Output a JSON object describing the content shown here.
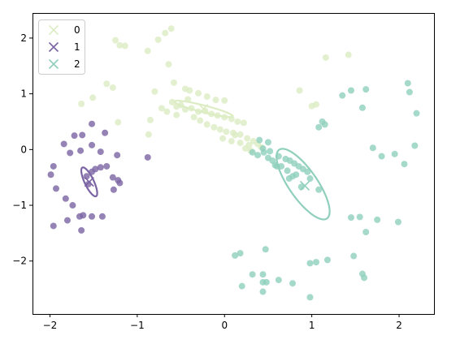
{
  "chart_data": {
    "type": "scatter",
    "xlim": [
      -2.2,
      2.4
    ],
    "ylim": [
      -2.95,
      2.45
    ],
    "x_ticks": [
      -2,
      -1,
      0,
      1,
      2
    ],
    "y_ticks": [
      -2,
      -1,
      0,
      1,
      2
    ],
    "x_tick_labels": [
      "−2",
      "−1",
      "0",
      "1",
      "2"
    ],
    "y_tick_labels": [
      "−2",
      "−1",
      "0",
      "1",
      "2"
    ],
    "grid": false,
    "legend_position": "top-left",
    "series": [
      {
        "name": "0",
        "color": "#dcecc3",
        "center": [
          -0.24,
          0.73
        ],
        "ellipse": {
          "center": [
            -0.24,
            0.73
          ],
          "rx": 0.36,
          "ry": 0.06,
          "angle_deg": -22
        },
        "points": [
          [
            -1.25,
            1.96
          ],
          [
            -1.14,
            1.86
          ],
          [
            -1.2,
            1.87
          ],
          [
            -0.88,
            1.77
          ],
          [
            -0.68,
            2.09
          ],
          [
            -0.61,
            2.17
          ],
          [
            -0.76,
            1.97
          ],
          [
            -0.64,
            1.53
          ],
          [
            -1.35,
            1.18
          ],
          [
            -1.28,
            1.11
          ],
          [
            -1.51,
            0.93
          ],
          [
            -1.64,
            0.82
          ],
          [
            -1.22,
            0.49
          ],
          [
            -0.85,
            0.53
          ],
          [
            -0.87,
            0.27
          ],
          [
            -0.8,
            1.04
          ],
          [
            -0.58,
            1.2
          ],
          [
            -0.45,
            1.09
          ],
          [
            -0.4,
            1.06
          ],
          [
            -0.3,
            1.01
          ],
          [
            -0.2,
            0.95
          ],
          [
            -0.1,
            0.89
          ],
          [
            0.0,
            0.88
          ],
          [
            -0.6,
            0.85
          ],
          [
            -0.55,
            0.77
          ],
          [
            -0.5,
            0.8
          ],
          [
            -0.45,
            0.72
          ],
          [
            -0.38,
            0.74
          ],
          [
            -0.3,
            0.68
          ],
          [
            -0.22,
            0.69
          ],
          [
            -0.15,
            0.64
          ],
          [
            -0.08,
            0.61
          ],
          [
            0.0,
            0.58
          ],
          [
            0.08,
            0.55
          ],
          [
            0.15,
            0.5
          ],
          [
            0.22,
            0.48
          ],
          [
            -0.35,
            0.58
          ],
          [
            -0.28,
            0.52
          ],
          [
            -0.2,
            0.45
          ],
          [
            -0.12,
            0.4
          ],
          [
            -0.05,
            0.36
          ],
          [
            0.02,
            0.32
          ],
          [
            0.1,
            0.3
          ],
          [
            0.18,
            0.27
          ],
          [
            0.26,
            0.2
          ],
          [
            0.33,
            0.15
          ],
          [
            0.38,
            0.1
          ],
          [
            -0.02,
            0.2
          ],
          [
            0.08,
            0.15
          ],
          [
            0.18,
            0.12
          ],
          [
            0.28,
            0.08
          ],
          [
            0.24,
            0.02
          ],
          [
            -0.72,
            0.74
          ],
          [
            -0.66,
            0.68
          ],
          [
            -0.55,
            0.62
          ],
          [
            0.42,
            0.04
          ],
          [
            0.3,
            -0.02
          ],
          [
            0.12,
            0.26
          ],
          [
            -0.42,
            0.9
          ],
          [
            1.16,
            1.65
          ],
          [
            1.42,
            1.7
          ],
          [
            0.86,
            1.06
          ],
          [
            1.0,
            0.78
          ],
          [
            1.05,
            0.81
          ]
        ]
      },
      {
        "name": "1",
        "color": "#7b64a4",
        "center": [
          -1.55,
          -0.58
        ],
        "ellipse": {
          "center": [
            -1.55,
            -0.58
          ],
          "rx": 0.27,
          "ry": 0.055,
          "angle_deg": -74
        },
        "points": [
          [
            -1.72,
            0.25
          ],
          [
            -1.63,
            0.26
          ],
          [
            -1.52,
            0.46
          ],
          [
            -1.37,
            0.3
          ],
          [
            -1.84,
            0.1
          ],
          [
            -1.77,
            -0.06
          ],
          [
            -1.65,
            -0.02
          ],
          [
            -1.52,
            0.08
          ],
          [
            -1.42,
            -0.04
          ],
          [
            -1.23,
            -0.1
          ],
          [
            -1.96,
            -0.3
          ],
          [
            -1.99,
            -0.45
          ],
          [
            -1.93,
            -0.7
          ],
          [
            -1.82,
            -0.88
          ],
          [
            -1.74,
            -1.0
          ],
          [
            -1.96,
            -1.37
          ],
          [
            -1.8,
            -1.27
          ],
          [
            -1.66,
            -1.2
          ],
          [
            -1.62,
            -1.18
          ],
          [
            -1.64,
            -1.45
          ],
          [
            -1.52,
            -1.2
          ],
          [
            -1.4,
            -1.2
          ],
          [
            -1.35,
            -0.3
          ],
          [
            -1.42,
            -0.32
          ],
          [
            -1.48,
            -0.35
          ],
          [
            -1.52,
            -0.4
          ],
          [
            -1.58,
            -0.48
          ],
          [
            -1.56,
            -0.62
          ],
          [
            -1.27,
            -0.72
          ],
          [
            -1.28,
            -0.5
          ],
          [
            -1.22,
            -0.55
          ],
          [
            -1.2,
            -0.6
          ],
          [
            -0.88,
            -0.14
          ]
        ]
      },
      {
        "name": "2",
        "color": "#8fcfbc",
        "center": [
          0.92,
          -0.65
        ],
        "ellipse": {
          "center": [
            0.9,
            -0.62
          ],
          "rx": 0.68,
          "ry": 0.18,
          "angle_deg": -68
        },
        "points": [
          [
            0.4,
            0.17
          ],
          [
            0.5,
            0.13
          ],
          [
            0.44,
            0.02
          ],
          [
            0.52,
            -0.03
          ],
          [
            0.62,
            -0.12
          ],
          [
            0.7,
            -0.17
          ],
          [
            0.75,
            -0.2
          ],
          [
            0.8,
            -0.25
          ],
          [
            0.85,
            -0.3
          ],
          [
            0.9,
            -0.35
          ],
          [
            0.95,
            -0.4
          ],
          [
            0.82,
            -0.45
          ],
          [
            0.78,
            -0.48
          ],
          [
            0.72,
            -0.38
          ],
          [
            0.65,
            -0.3
          ],
          [
            0.58,
            -0.28
          ],
          [
            0.5,
            -0.15
          ],
          [
            0.45,
            -0.05
          ],
          [
            0.38,
            -0.1
          ],
          [
            0.32,
            -0.05
          ],
          [
            0.55,
            -0.2
          ],
          [
            0.6,
            -0.3
          ],
          [
            0.74,
            -0.52
          ],
          [
            0.98,
            -0.52
          ],
          [
            1.08,
            -0.72
          ],
          [
            0.88,
            -0.67
          ],
          [
            1.35,
            0.97
          ],
          [
            1.45,
            1.06
          ],
          [
            1.62,
            1.08
          ],
          [
            1.58,
            0.75
          ],
          [
            1.12,
            0.5
          ],
          [
            1.08,
            0.4
          ],
          [
            1.15,
            0.45
          ],
          [
            1.8,
            -0.12
          ],
          [
            1.95,
            -0.08
          ],
          [
            2.1,
            1.19
          ],
          [
            2.12,
            1.03
          ],
          [
            2.2,
            0.65
          ],
          [
            2.18,
            0.07
          ],
          [
            1.7,
            0.03
          ],
          [
            2.06,
            -0.26
          ],
          [
            1.75,
            -1.26
          ],
          [
            1.55,
            -1.21
          ],
          [
            1.45,
            -1.22
          ],
          [
            1.62,
            -1.48
          ],
          [
            1.99,
            -1.3
          ],
          [
            1.48,
            -1.91
          ],
          [
            1.58,
            -2.23
          ],
          [
            1.6,
            -2.3
          ],
          [
            1.05,
            -2.02
          ],
          [
            0.98,
            -2.04
          ],
          [
            1.18,
            -1.98
          ],
          [
            0.47,
            -1.79
          ],
          [
            0.18,
            -1.86
          ],
          [
            0.12,
            -1.9
          ],
          [
            0.2,
            -2.45
          ],
          [
            0.32,
            -2.24
          ],
          [
            0.44,
            -2.24
          ],
          [
            0.44,
            -2.38
          ],
          [
            0.48,
            -2.38
          ],
          [
            0.62,
            -2.34
          ],
          [
            0.78,
            -2.4
          ],
          [
            0.44,
            -2.55
          ],
          [
            0.98,
            -2.65
          ]
        ]
      }
    ]
  }
}
